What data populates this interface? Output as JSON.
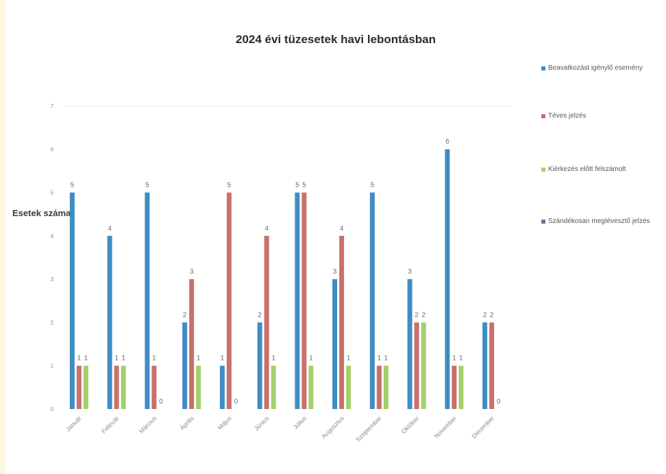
{
  "chart_data": {
    "type": "bar",
    "title": "2024 évi tüzesetek havi lebontásban",
    "xlabel": "",
    "ylabel": "Esetek száma",
    "ylim": [
      0,
      7
    ],
    "yticks": [
      "0",
      "1",
      "2",
      "3",
      "4",
      "5",
      "6",
      "7"
    ],
    "grid": false,
    "legend_position": "right",
    "categories": [
      "Január",
      "Február",
      "Március",
      "Április",
      "Május",
      "Június",
      "Július",
      "Augusztus",
      "Szeptember",
      "Október",
      "November",
      "December"
    ],
    "series": [
      {
        "name": "Beavatkozást igénylő esemény",
        "color": "#3f8dc4",
        "values": [
          5,
          4,
          5,
          2,
          1,
          2,
          5,
          3,
          5,
          3,
          6,
          2
        ]
      },
      {
        "name": "Téves jelzés",
        "color": "#c9706b",
        "values": [
          1,
          1,
          1,
          3,
          5,
          4,
          5,
          4,
          1,
          2,
          1,
          2
        ]
      },
      {
        "name": "Kiérkezés előtt felszámolt",
        "color": "#a3cf6c",
        "values": [
          1,
          1,
          0,
          1,
          0,
          1,
          1,
          1,
          1,
          2,
          1,
          0
        ]
      },
      {
        "name": "Szándékosan megtévesztő jelzés",
        "color": "#5b7fa8",
        "values": [
          0,
          0,
          0,
          0,
          0,
          0,
          0,
          0,
          0,
          0,
          0,
          0
        ]
      }
    ]
  }
}
